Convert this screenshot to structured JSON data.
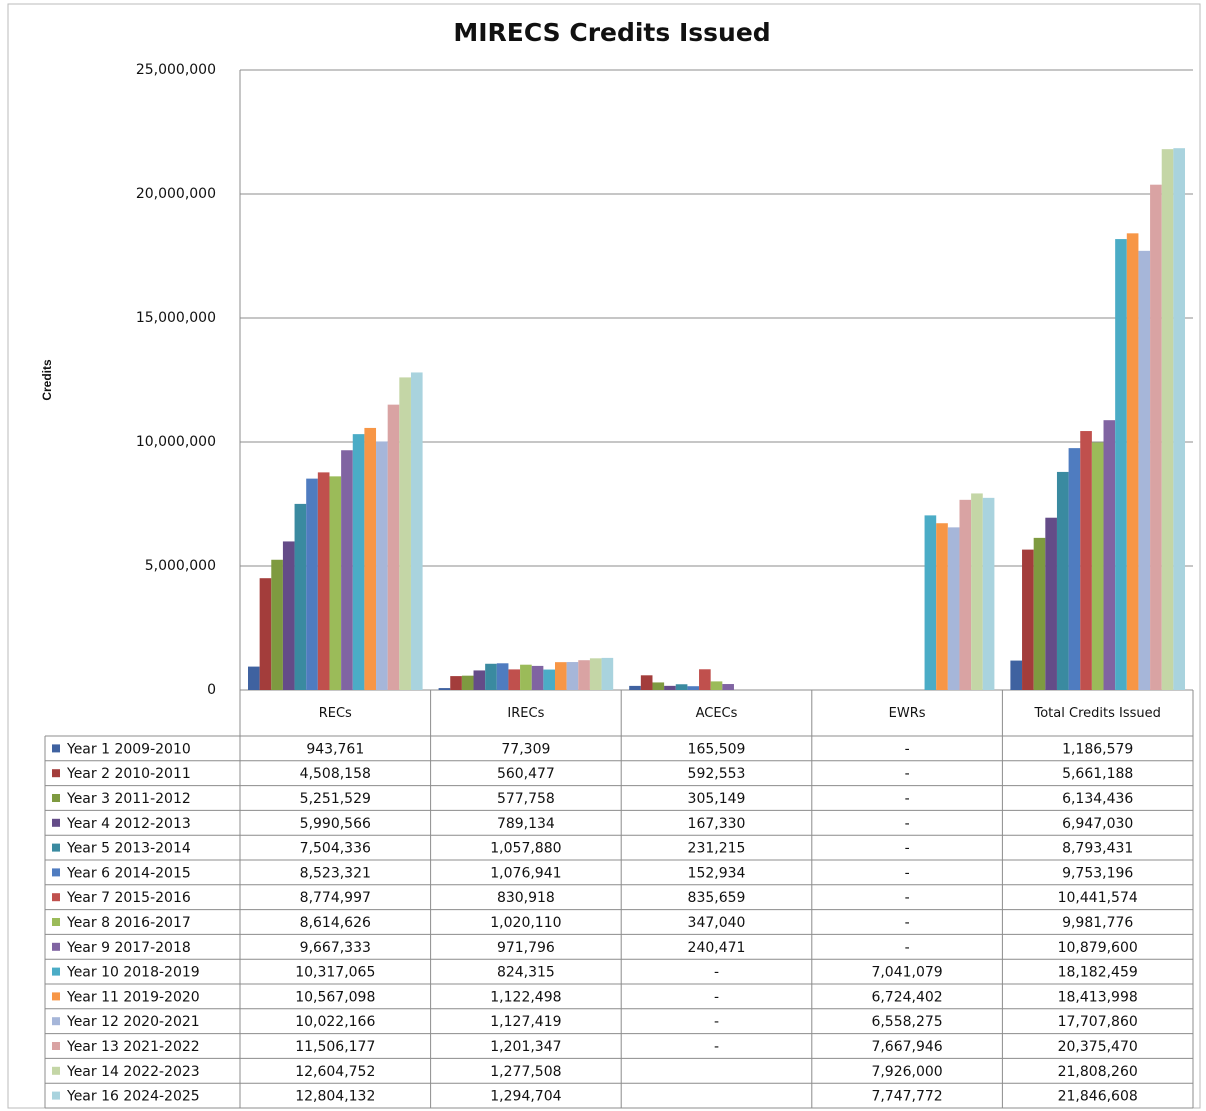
{
  "chart_data": {
    "type": "bar",
    "title": "MIRECS Credits Issued",
    "y_label": "Credits",
    "categories": [
      "RECs",
      "IRECs",
      "ACECs",
      "EWRs",
      "Total Credits Issued"
    ],
    "ylim": [
      0,
      25000000
    ],
    "yticks": [
      0,
      {
        "value": 5000000,
        "label": "5,000,000"
      },
      {
        "value": 10000000,
        "label": "10,000,000"
      },
      {
        "value": 15000000,
        "label": "15,000,000"
      },
      {
        "value": 20000000,
        "label": "20,000,000"
      },
      {
        "value": 25000000,
        "label": "25,000,000"
      }
    ],
    "grid": true,
    "series": [
      {
        "name": "Year 1 2009-2010",
        "color": "#3f62a0",
        "values": [
          943761,
          77309,
          165509,
          null,
          1186579
        ],
        "value_labels": [
          "943,761",
          "77,309",
          "165,509",
          "-",
          "1,186,579"
        ]
      },
      {
        "name": "Year 2 2010-2011",
        "color": "#a33d3b",
        "values": [
          4508158,
          560477,
          592553,
          null,
          5661188
        ],
        "value_labels": [
          "4,508,158",
          "560,477",
          "592,553",
          "-",
          "5,661,188"
        ]
      },
      {
        "name": "Year 3 2011-2012",
        "color": "#7e9a40",
        "values": [
          5251529,
          577758,
          305149,
          null,
          6134436
        ],
        "value_labels": [
          "5,251,529",
          "577,758",
          "305,149",
          "-",
          "6,134,436"
        ]
      },
      {
        "name": "Year 4 2012-2013",
        "color": "#644c88",
        "values": [
          5990566,
          789134,
          167330,
          null,
          6947030
        ],
        "value_labels": [
          "5,990,566",
          "789,134",
          "167,330",
          "-",
          "6,947,030"
        ]
      },
      {
        "name": "Year 5 2013-2014",
        "color": "#3a8aa0",
        "values": [
          7504336,
          1057880,
          231215,
          null,
          8793431
        ],
        "value_labels": [
          "7,504,336",
          "1,057,880",
          "231,215",
          "-",
          "8,793,431"
        ]
      },
      {
        "name": "Year 6 2014-2015",
        "color": "#4f7cc0",
        "values": [
          8523321,
          1076941,
          152934,
          null,
          9753196
        ],
        "value_labels": [
          "8,523,321",
          "1,076,941",
          "152,934",
          "-",
          "9,753,196"
        ]
      },
      {
        "name": "Year 7 2015-2016",
        "color": "#c0504d",
        "values": [
          8774997,
          830918,
          835659,
          null,
          10441574
        ],
        "value_labels": [
          "8,774,997",
          "830,918",
          "835,659",
          "-",
          "10,441,574"
        ]
      },
      {
        "name": "Year 8 2016-2017",
        "color": "#9bbb59",
        "values": [
          8614626,
          1020110,
          347040,
          null,
          9981776
        ],
        "value_labels": [
          "8,614,626",
          "1,020,110",
          "347,040",
          "-",
          "9,981,776"
        ]
      },
      {
        "name": "Year 9 2017-2018",
        "color": "#8064a2",
        "values": [
          9667333,
          971796,
          240471,
          null,
          10879600
        ],
        "value_labels": [
          "9,667,333",
          "971,796",
          "240,471",
          "-",
          "10,879,600"
        ]
      },
      {
        "name": "Year 10 2018-2019",
        "color": "#4bacc6",
        "values": [
          10317065,
          824315,
          null,
          7041079,
          18182459
        ],
        "value_labels": [
          "10,317,065",
          "824,315",
          "-",
          "7,041,079",
          "18,182,459"
        ]
      },
      {
        "name": "Year 11 2019-2020",
        "color": "#f79646",
        "values": [
          10567098,
          1122498,
          null,
          6724402,
          18413998
        ],
        "value_labels": [
          "10,567,098",
          "1,122,498",
          "-",
          "6,724,402",
          "18,413,998"
        ]
      },
      {
        "name": "Year 12 2020-2021",
        "color": "#a6b6d9",
        "values": [
          10022166,
          1127419,
          null,
          6558275,
          17707860
        ],
        "value_labels": [
          "10,022,166",
          "1,127,419",
          "-",
          "6,558,275",
          "17,707,860"
        ]
      },
      {
        "name": "Year 13 2021-2022",
        "color": "#d9a3a3",
        "values": [
          11506177,
          1201347,
          null,
          7667946,
          20375470
        ],
        "value_labels": [
          "11,506,177",
          "1,201,347",
          "-",
          "7,667,946",
          "20,375,470"
        ]
      },
      {
        "name": "Year 14 2022-2023",
        "color": "#c4d6a6",
        "values": [
          12604752,
          1277508,
          null,
          7926000,
          21808260
        ],
        "value_labels": [
          "12,604,752",
          "1,277,508",
          null,
          "7,926,000",
          "21,808,260"
        ]
      },
      {
        "name": "Year 16 2024-2025",
        "color": "#a9d3de",
        "values": [
          12804132,
          1294704,
          null,
          7747772,
          21846608
        ],
        "value_labels": [
          "12,804,132",
          "1,294,704",
          null,
          "7,747,772",
          "21,846,608"
        ]
      }
    ]
  }
}
